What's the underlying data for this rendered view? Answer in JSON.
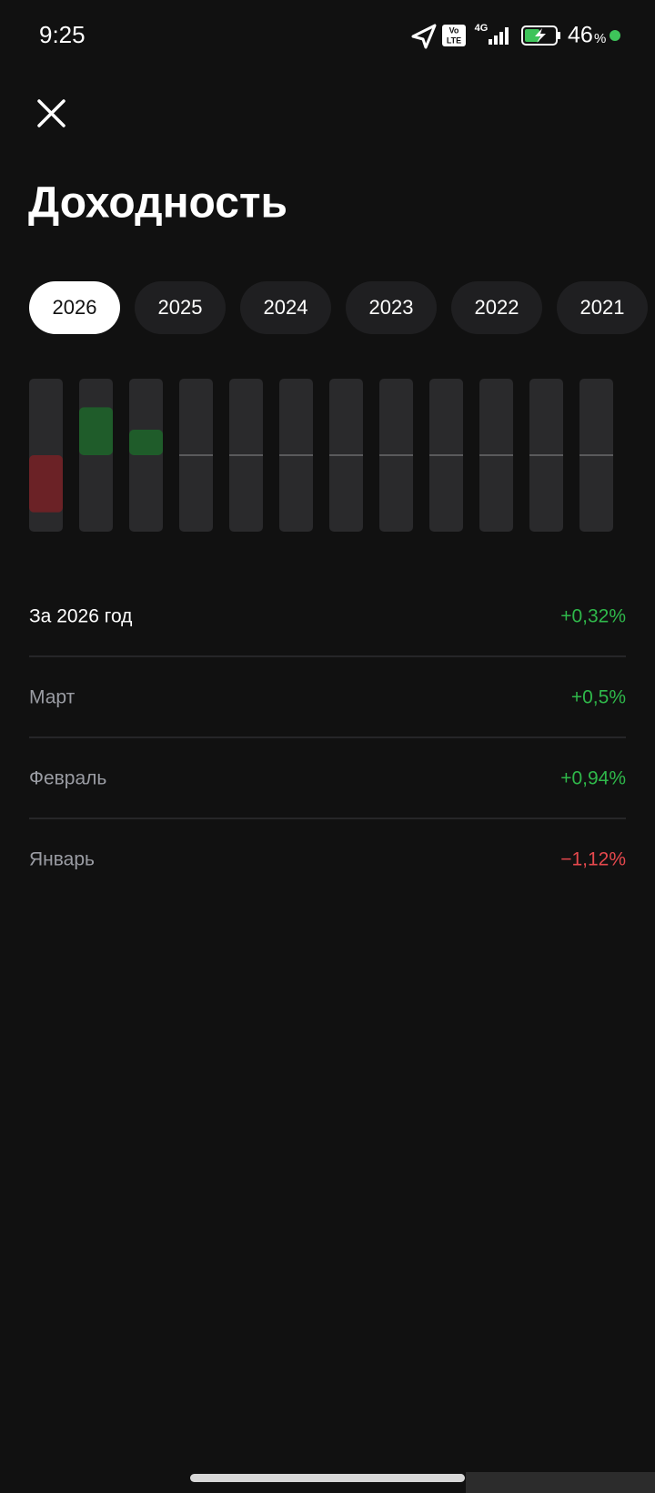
{
  "status": {
    "time": "9:25",
    "volte": [
      "Vo",
      "LTE"
    ],
    "network": "4G",
    "battery": "46",
    "battery_unit": "%"
  },
  "header": {
    "title": "Доходность"
  },
  "tabs": {
    "items": [
      "2026",
      "2025",
      "2024",
      "2023",
      "2022",
      "2021"
    ],
    "selected": 0
  },
  "chart": {
    "values": [
      -1.12,
      0.94,
      0.5,
      null,
      null,
      null,
      null,
      null,
      null,
      null,
      null,
      null
    ],
    "ylim": [
      -1.5,
      1.5
    ],
    "positive_color": "#1f5c2a",
    "negative_color": "#6b2226"
  },
  "list": {
    "rows": [
      {
        "label": "За 2026 год",
        "value_label": "+0,32%",
        "emphasis": true
      },
      {
        "label": "Март",
        "value_label": "+0,5%"
      },
      {
        "label": "Февраль",
        "value_label": "+0,94%"
      },
      {
        "label": "Январь",
        "value_label": "−1,12%"
      }
    ]
  }
}
